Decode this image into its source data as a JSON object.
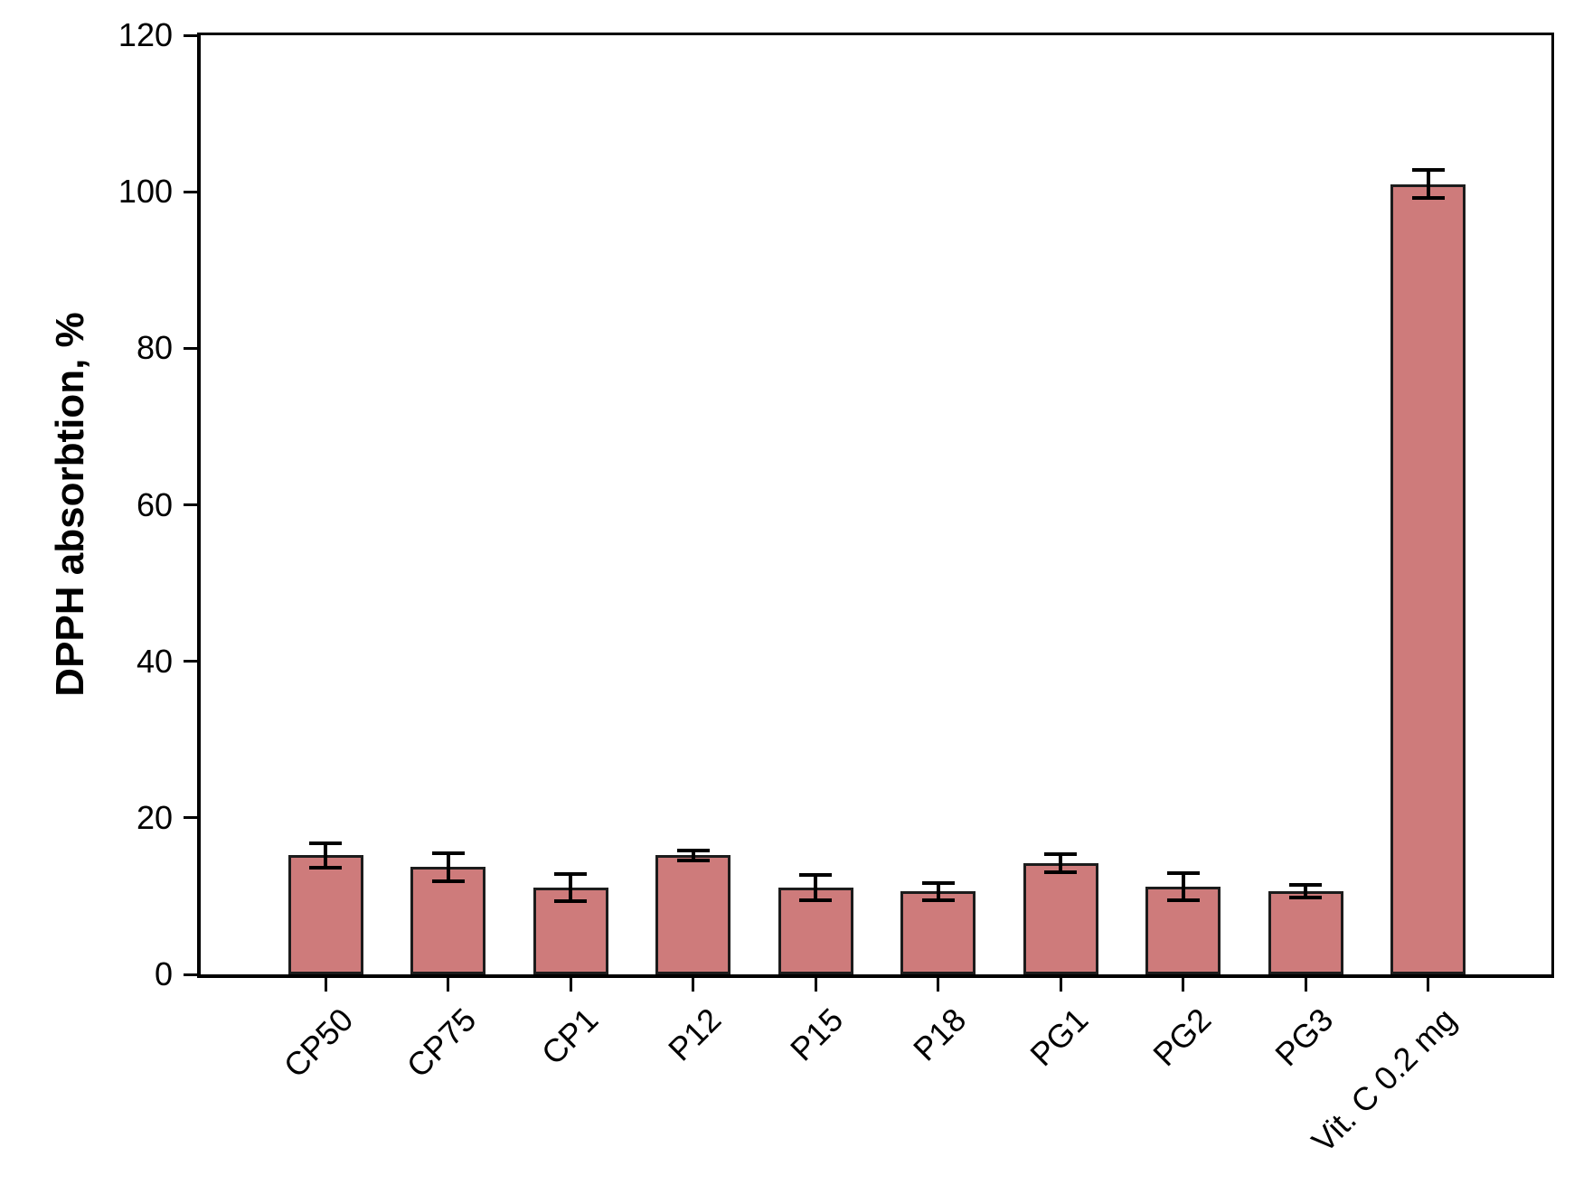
{
  "figure": {
    "background": "#ffffff"
  },
  "chart_data": {
    "type": "bar",
    "title": "",
    "xlabel": "",
    "ylabel": "DPPH absorbtion, %",
    "ylim": [
      0,
      120
    ],
    "yticks": [
      0,
      20,
      40,
      60,
      80,
      100,
      120
    ],
    "grid": false,
    "frame": "box",
    "legend": null,
    "categories": [
      "CP50",
      "CP75",
      "CP1",
      "P12",
      "P15",
      "P18",
      "PG1",
      "PG2",
      "PG3",
      "Vit. C 0.2 mg"
    ],
    "series": [
      {
        "name": "DPPH absorbtion",
        "values": [
          15.2,
          13.7,
          11.1,
          15.2,
          11.1,
          10.6,
          14.2,
          11.2,
          10.6,
          101.0
        ],
        "errors": [
          1.6,
          1.8,
          1.7,
          0.6,
          1.6,
          1.1,
          1.2,
          1.7,
          0.8,
          1.8
        ]
      }
    ],
    "bar_fill_color": "#ce7b7b",
    "bar_border_color": "#1c1c1c",
    "error_bar_color": "#000000",
    "axis_color": "#000000"
  }
}
